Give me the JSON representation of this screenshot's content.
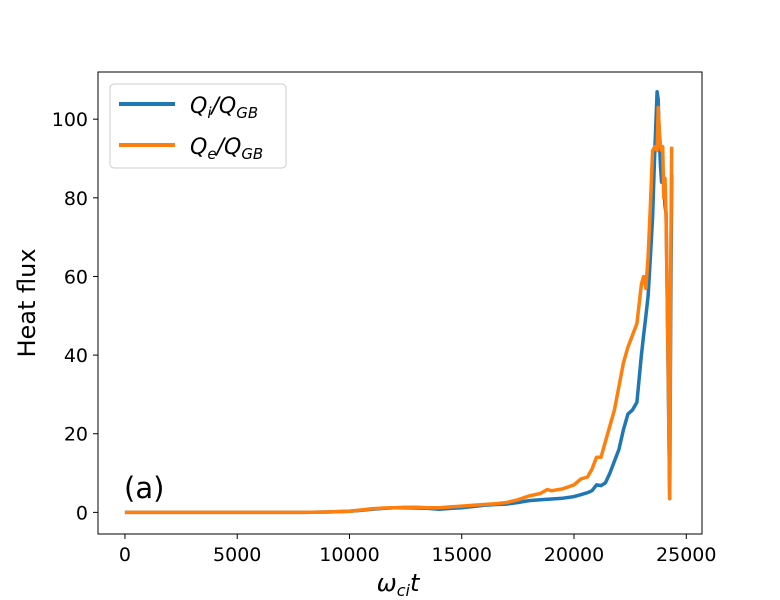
{
  "chart_data": {
    "type": "line",
    "annotation": "(a)",
    "xlabel_base": "ω",
    "xlabel_sub": "ci",
    "xlabel_tail": "t",
    "ylabel": "Heat flux",
    "xlim": [
      -1200,
      25700
    ],
    "ylim": [
      -5.5,
      112
    ],
    "xticks": [
      0,
      5000,
      10000,
      15000,
      20000,
      25000
    ],
    "yticks": [
      0,
      20,
      40,
      60,
      80,
      100
    ],
    "legend_position": "upper-left",
    "grid": false,
    "series": [
      {
        "name_base": "Q",
        "name_sub": "i",
        "name_den": "Q",
        "name_den_sub": "GB",
        "color": "#1f77b4",
        "x": [
          0,
          2000,
          4000,
          6000,
          8000,
          9000,
          10000,
          10500,
          11000,
          11500,
          12000,
          12500,
          13000,
          13500,
          14000,
          14500,
          15000,
          15500,
          16000,
          16500,
          17000,
          17500,
          18000,
          18500,
          19000,
          19500,
          20000,
          20300,
          20600,
          20800,
          21000,
          21200,
          21400,
          21600,
          21800,
          22000,
          22200,
          22400,
          22600,
          22800,
          23000,
          23100,
          23200,
          23300,
          23400,
          23500,
          23600,
          23700,
          23750,
          23800,
          23850,
          23900,
          23950,
          24000,
          24050,
          24100,
          24150,
          24200,
          24260,
          24300,
          24350
        ],
        "y": [
          0,
          0,
          0,
          0,
          0,
          0.1,
          0.3,
          0.5,
          0.8,
          1.0,
          1.2,
          1.2,
          1.1,
          1.0,
          0.8,
          1.0,
          1.2,
          1.5,
          1.8,
          2.0,
          2.1,
          2.5,
          3.0,
          3.2,
          3.4,
          3.6,
          4.0,
          4.5,
          5.0,
          5.5,
          7.0,
          6.8,
          7.5,
          10.0,
          13.0,
          16.0,
          21.0,
          25.0,
          26.0,
          28.0,
          40.0,
          45.0,
          50.0,
          55.0,
          65.0,
          75.0,
          92.0,
          107.0,
          105.0,
          95.0,
          88.0,
          84.0,
          86.0,
          83.0,
          78.0,
          76.0,
          55.0,
          32.0,
          3.5,
          45.0,
          86.0
        ]
      },
      {
        "name_base": "Q",
        "name_sub": "e",
        "name_den": "Q",
        "name_den_sub": "GB",
        "color": "#ff7f0e",
        "x": [
          0,
          2000,
          4000,
          6000,
          8000,
          9000,
          10000,
          10500,
          11000,
          11500,
          12000,
          12500,
          13000,
          13500,
          14000,
          14500,
          15000,
          15500,
          16000,
          16500,
          17000,
          17500,
          18000,
          18500,
          18800,
          19000,
          19500,
          20000,
          20300,
          20600,
          20800,
          21000,
          21200,
          21400,
          21600,
          21800,
          22000,
          22200,
          22400,
          22600,
          22800,
          23000,
          23100,
          23200,
          23300,
          23400,
          23500,
          23600,
          23700,
          23750,
          23800,
          23850,
          23900,
          23950,
          24000,
          24050,
          24100,
          24150,
          24200,
          24260,
          24300,
          24350
        ],
        "y": [
          0,
          0,
          0,
          0,
          0,
          0.1,
          0.3,
          0.6,
          0.9,
          1.1,
          1.2,
          1.3,
          1.3,
          1.2,
          1.2,
          1.4,
          1.6,
          1.8,
          2.0,
          2.2,
          2.5,
          3.2,
          4.2,
          4.8,
          5.8,
          5.5,
          6.0,
          7.0,
          8.5,
          9.0,
          11.0,
          14.0,
          14.0,
          18.0,
          22.0,
          26.0,
          32.0,
          38.0,
          42.0,
          45.0,
          48.0,
          58.0,
          60.0,
          57.0,
          65.0,
          78.0,
          92.0,
          93.0,
          92.0,
          103.0,
          97.0,
          93.0,
          92.0,
          93.0,
          80.0,
          85.0,
          75.0,
          55.0,
          35.0,
          3.5,
          60.0,
          93.0
        ]
      }
    ]
  }
}
